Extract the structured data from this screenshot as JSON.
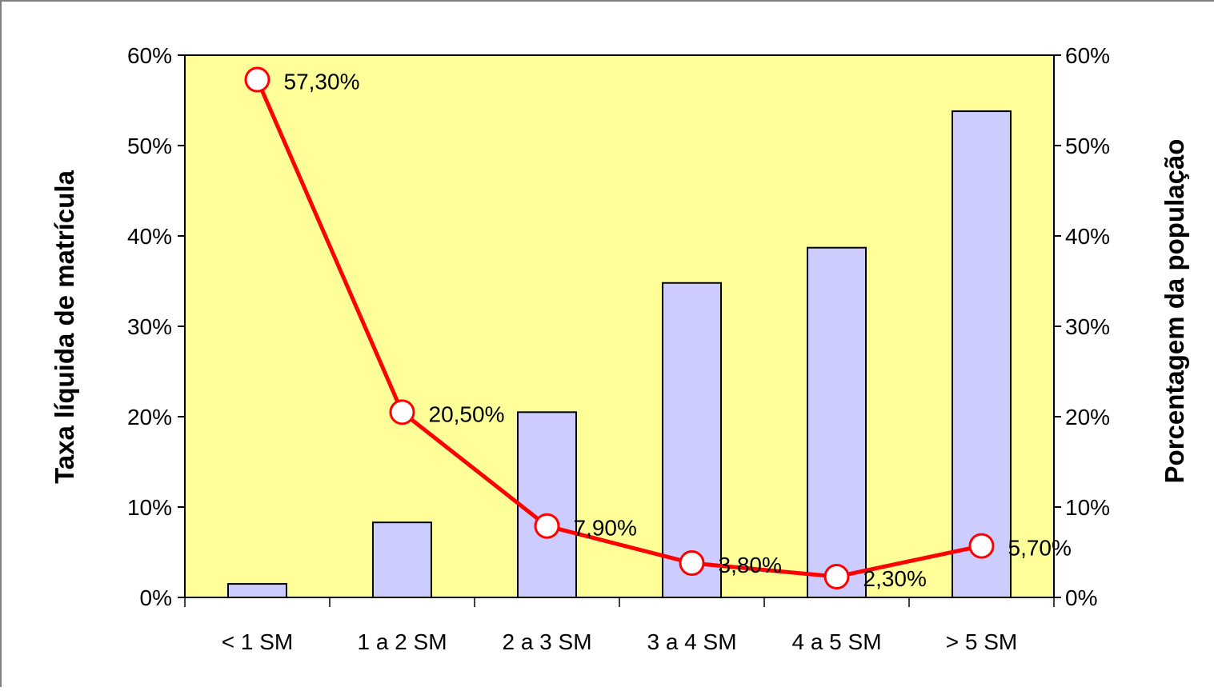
{
  "chart_data": {
    "type": "bar",
    "categories": [
      "< 1 SM",
      "1 a 2 SM",
      "2 a 3 SM",
      "3 a 4 SM",
      "4 a 5 SM",
      "> 5 SM"
    ],
    "series": [
      {
        "type": "bar",
        "axis": "left",
        "values": [
          1.5,
          8.3,
          20.5,
          34.8,
          38.7,
          53.8
        ],
        "color": "#ccccff"
      },
      {
        "type": "line",
        "axis": "right",
        "values": [
          57.3,
          20.5,
          7.9,
          3.8,
          2.3,
          5.7
        ],
        "data_labels": [
          "57,30%",
          "20,50%",
          "7,90%",
          "3,80%",
          "2,30%",
          "5,70%"
        ],
        "color": "#ff0000"
      }
    ],
    "ylabel": "Taxa líquida de matrícula",
    "y2label": "Porcentagem da população",
    "ylim": [
      0,
      60
    ],
    "y2lim": [
      0,
      60
    ],
    "yticks": [
      "0%",
      "10%",
      "20%",
      "30%",
      "40%",
      "50%",
      "60%"
    ],
    "y2ticks": [
      "0%",
      "10%",
      "20%",
      "30%",
      "40%",
      "50%",
      "60%"
    ],
    "plot_background": "#ffff99",
    "grid": false,
    "legend": false
  }
}
